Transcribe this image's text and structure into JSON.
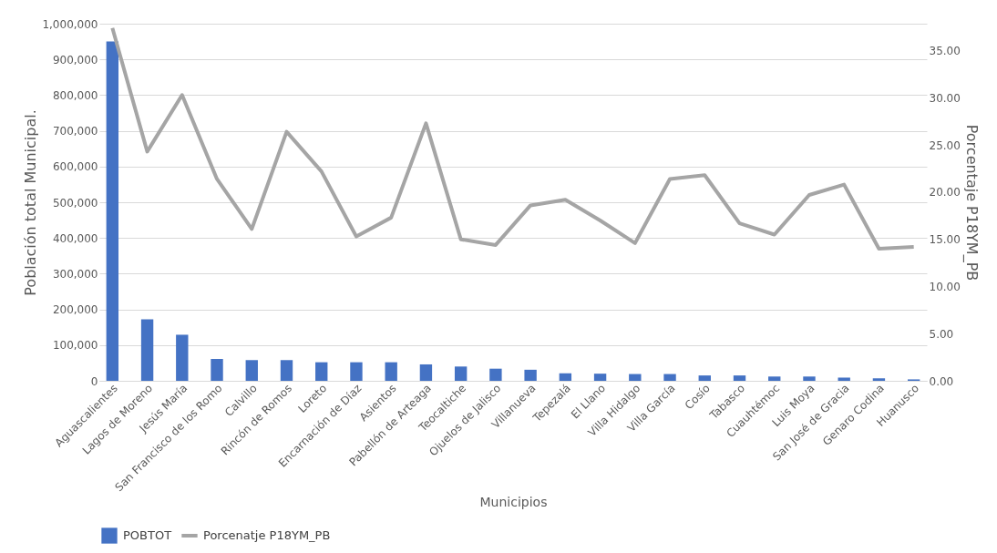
{
  "chart_data": {
    "type": "bar",
    "xlabel": "Municipios",
    "ylabel": "Población total Municipal.",
    "y2label": "Porcentaje P18YM_PB",
    "categories": [
      "Aguascalientes",
      "Lagos de Moreno",
      "Jesús María",
      "San Francisco de los Romo",
      "Calvillo",
      "Rincón de Romos",
      "Loreto",
      "Encarnación de Díaz",
      "Asientos",
      "Pabellón de Arteaga",
      "Teocaltiche",
      "Ojuelos de Jalisco",
      "Villanueva",
      "Tepezalá",
      "El Llano",
      "Villa Hidalgo",
      "Villa García",
      "Cosío",
      "Tabasco",
      "Cuauhtémoc",
      "Luis Moya",
      "San José de Gracia",
      "Genaro Codina",
      "Huanusco"
    ],
    "series": [
      {
        "name": "POBTOT",
        "color": "#4472c4",
        "values": [
          950000,
          172000,
          129000,
          61000,
          58000,
          58000,
          52000,
          52000,
          52000,
          46000,
          40000,
          34000,
          31000,
          21000,
          20000,
          19000,
          19000,
          15000,
          15000,
          12000,
          12000,
          9000,
          7000,
          4000
        ]
      },
      {
        "name": "Porcenatje P18YM_PB",
        "type": "line",
        "axis": "y2",
        "color": "#a5a5a5",
        "values": [
          37.4,
          24.3,
          30.3,
          21.4,
          16.1,
          26.4,
          22.2,
          15.3,
          17.3,
          27.3,
          15.0,
          14.4,
          18.6,
          19.2,
          17.0,
          14.6,
          21.4,
          21.8,
          16.7,
          15.5,
          19.7,
          20.8,
          14.0,
          14.2
        ]
      }
    ],
    "ylim": [
      0,
      1000000
    ],
    "yticks": [
      {
        "value": 0,
        "label": "0"
      },
      {
        "value": 100000,
        "label": "100,000"
      },
      {
        "value": 200000,
        "label": "200,000"
      },
      {
        "value": 300000,
        "label": "300,000"
      },
      {
        "value": 400000,
        "label": "400,000"
      },
      {
        "value": 500000,
        "label": "500,000"
      },
      {
        "value": 600000,
        "label": "600,000"
      },
      {
        "value": 700000,
        "label": "700,000"
      },
      {
        "value": 800000,
        "label": "800,000"
      },
      {
        "value": 900000,
        "label": "900,000"
      },
      {
        "value": 1000000,
        "label": "1,000,000"
      }
    ],
    "y2lim": [
      0,
      37.86
    ],
    "y2ticks": [
      {
        "value": 0,
        "label": "0.00"
      },
      {
        "value": 5,
        "label": "5.00"
      },
      {
        "value": 10,
        "label": "10.00"
      },
      {
        "value": 15,
        "label": "15.00"
      },
      {
        "value": 20,
        "label": "20.00"
      },
      {
        "value": 25,
        "label": "25.00"
      },
      {
        "value": 30,
        "label": "30.00"
      },
      {
        "value": 35,
        "label": "35.00"
      }
    ],
    "grid": "y",
    "legend": "bottom",
    "marker": "none",
    "line_style": "solid"
  }
}
